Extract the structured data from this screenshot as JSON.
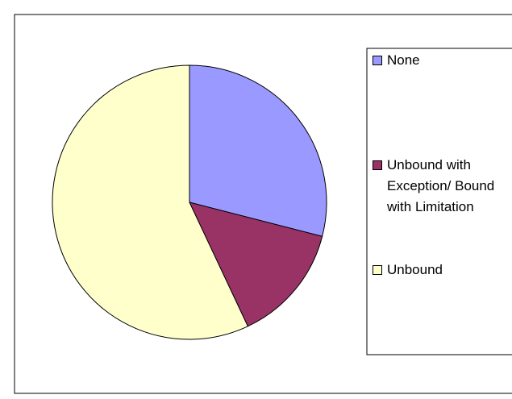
{
  "chart_data": {
    "type": "pie",
    "categories": [
      "None",
      "Unbound with Exception/ Bound with Limitation",
      "Unbound"
    ],
    "values": [
      29,
      14,
      57
    ],
    "colors": [
      "#9999ff",
      "#993366",
      "#ffffcc"
    ],
    "legend": "right"
  }
}
